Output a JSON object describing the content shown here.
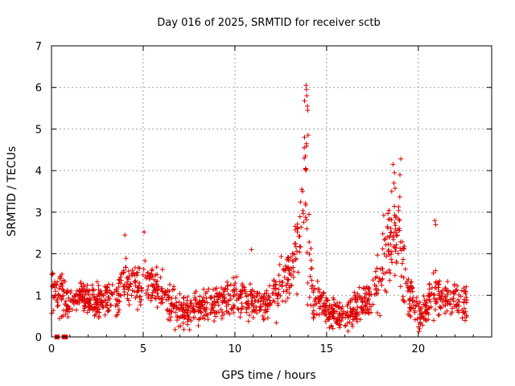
{
  "chart_data": {
    "type": "scatter",
    "title": "Day 016 of 2025, SRMTID for receiver sctb",
    "xlabel": "GPS time / hours",
    "ylabel": "SRMTID / TECUs",
    "xlim": [
      0,
      24
    ],
    "ylim": [
      0,
      7
    ],
    "xticks": [
      "0",
      "5",
      "10",
      "15",
      "20"
    ],
    "yticks": [
      "0",
      "1",
      "2",
      "3",
      "4",
      "5",
      "6",
      "7"
    ],
    "grid": true,
    "marker": "+",
    "color": "#dd0000",
    "zero_markers_x": [
      0.3,
      0.7,
      0.75
    ],
    "profile": [
      [
        0.0,
        1.1,
        0.4
      ],
      [
        0.5,
        1.0,
        0.4
      ],
      [
        1.0,
        0.8,
        0.3
      ],
      [
        1.5,
        1.0,
        0.3
      ],
      [
        2.0,
        0.9,
        0.35
      ],
      [
        2.5,
        0.8,
        0.3
      ],
      [
        3.0,
        0.9,
        0.35
      ],
      [
        3.5,
        1.0,
        0.4
      ],
      [
        4.0,
        1.3,
        0.45
      ],
      [
        4.5,
        1.2,
        0.4
      ],
      [
        5.0,
        1.4,
        0.45
      ],
      [
        5.5,
        1.3,
        0.4
      ],
      [
        6.0,
        1.1,
        0.4
      ],
      [
        6.5,
        0.8,
        0.35
      ],
      [
        7.0,
        0.6,
        0.35
      ],
      [
        7.5,
        0.6,
        0.35
      ],
      [
        8.0,
        0.7,
        0.35
      ],
      [
        8.5,
        0.8,
        0.35
      ],
      [
        9.0,
        0.8,
        0.35
      ],
      [
        9.5,
        0.9,
        0.35
      ],
      [
        10.0,
        1.0,
        0.4
      ],
      [
        10.5,
        0.9,
        0.35
      ],
      [
        11.0,
        0.8,
        0.3
      ],
      [
        11.5,
        0.9,
        0.35
      ],
      [
        12.0,
        0.9,
        0.35
      ],
      [
        12.5,
        1.2,
        0.45
      ],
      [
        13.0,
        1.6,
        0.5
      ],
      [
        13.5,
        2.5,
        0.9
      ],
      [
        13.8,
        4.0,
        1.6
      ],
      [
        14.0,
        2.0,
        1.0
      ],
      [
        14.3,
        0.9,
        0.4
      ],
      [
        14.8,
        0.7,
        0.3
      ],
      [
        15.3,
        0.6,
        0.3
      ],
      [
        15.8,
        0.5,
        0.25
      ],
      [
        16.3,
        0.6,
        0.3
      ],
      [
        16.8,
        0.8,
        0.35
      ],
      [
        17.3,
        0.9,
        0.35
      ],
      [
        17.8,
        1.2,
        0.5
      ],
      [
        18.2,
        2.0,
        0.8
      ],
      [
        18.6,
        2.4,
        0.9
      ],
      [
        18.9,
        2.8,
        1.0
      ],
      [
        19.2,
        1.6,
        0.7
      ],
      [
        19.6,
        0.9,
        0.4
      ],
      [
        20.0,
        0.6,
        0.3
      ],
      [
        20.4,
        0.6,
        0.3
      ],
      [
        20.8,
        1.2,
        0.6
      ],
      [
        21.2,
        0.9,
        0.35
      ],
      [
        21.7,
        0.9,
        0.35
      ],
      [
        22.2,
        0.8,
        0.35
      ],
      [
        22.6,
        0.8,
        0.3
      ]
    ],
    "spikes": [
      [
        13.88,
        6.05
      ],
      [
        13.9,
        5.95
      ],
      [
        13.92,
        5.8
      ],
      [
        13.95,
        5.55
      ],
      [
        13.97,
        5.45
      ],
      [
        13.99,
        4.85
      ],
      [
        13.8,
        4.8
      ],
      [
        13.78,
        4.55
      ],
      [
        13.85,
        4.35
      ],
      [
        13.86,
        4.05
      ],
      [
        18.62,
        4.15
      ],
      [
        18.7,
        3.95
      ],
      [
        19.05,
        4.28
      ],
      [
        19.0,
        3.9
      ],
      [
        18.55,
        3.5
      ],
      [
        20.9,
        2.8
      ],
      [
        20.95,
        2.7
      ],
      [
        4.0,
        2.45
      ],
      [
        5.05,
        2.52
      ],
      [
        10.9,
        2.1
      ]
    ],
    "x_end": 22.7
  }
}
